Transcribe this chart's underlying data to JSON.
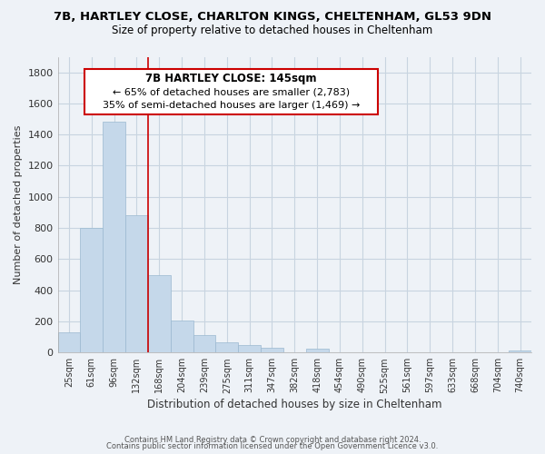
{
  "title_line1": "7B, HARTLEY CLOSE, CHARLTON KINGS, CHELTENHAM, GL53 9DN",
  "title_line2": "Size of property relative to detached houses in Cheltenham",
  "xlabel": "Distribution of detached houses by size in Cheltenham",
  "ylabel": "Number of detached properties",
  "categories": [
    "25sqm",
    "61sqm",
    "96sqm",
    "132sqm",
    "168sqm",
    "204sqm",
    "239sqm",
    "275sqm",
    "311sqm",
    "347sqm",
    "382sqm",
    "418sqm",
    "454sqm",
    "490sqm",
    "525sqm",
    "561sqm",
    "597sqm",
    "633sqm",
    "668sqm",
    "704sqm",
    "740sqm"
  ],
  "values": [
    130,
    800,
    1480,
    880,
    495,
    205,
    110,
    68,
    50,
    30,
    0,
    25,
    0,
    0,
    0,
    0,
    0,
    0,
    0,
    0,
    15
  ],
  "bar_color": "#c5d8ea",
  "bar_edge_color": "#9ab8d0",
  "vline_x": 3.5,
  "vline_color": "#cc0000",
  "annotation_title": "7B HARTLEY CLOSE: 145sqm",
  "annotation_line1": "← 65% of detached houses are smaller (2,783)",
  "annotation_line2": "35% of semi-detached houses are larger (1,469) →",
  "ylim": [
    0,
    1900
  ],
  "footnote1": "Contains HM Land Registry data © Crown copyright and database right 2024.",
  "footnote2": "Contains public sector information licensed under the Open Government Licence v3.0.",
  "grid_color": "#c8d4e0",
  "background_color": "#eef2f7",
  "plot_bg_color": "#eef2f7"
}
